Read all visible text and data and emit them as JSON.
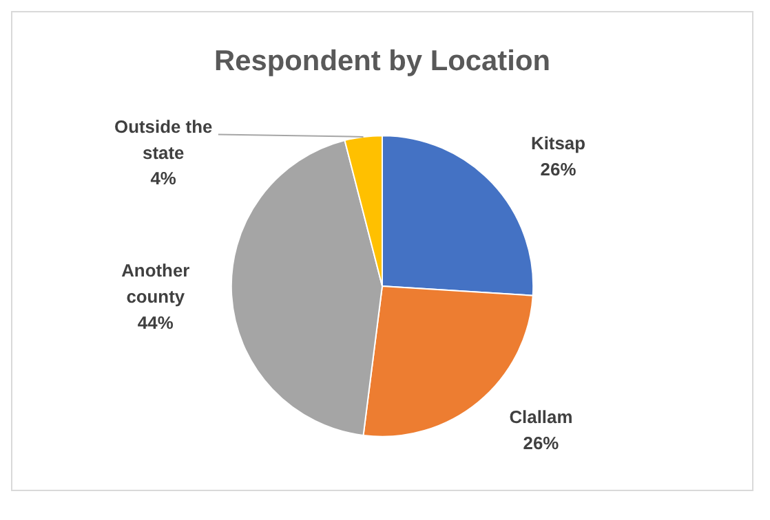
{
  "chart_data": {
    "type": "pie",
    "title": "Respondent by Location",
    "categories": [
      "Kitsap",
      "Clallam",
      "Another county",
      "Outside the state"
    ],
    "values": [
      26,
      26,
      44,
      4
    ],
    "colors": [
      "#4472c4",
      "#ed7d31",
      "#a5a5a5",
      "#ffc000"
    ],
    "value_labels": [
      "26%",
      "26%",
      "44%",
      "4%"
    ],
    "legend": false
  }
}
